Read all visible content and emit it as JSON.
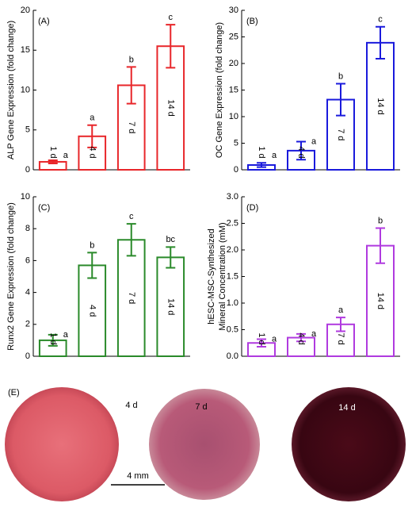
{
  "chart_data": [
    {
      "type": "bar",
      "panel": "(A)",
      "ylabel": "ALP Gene Expression (fold change)",
      "categories": [
        "1 d",
        "4 d",
        "7 d",
        "14 d"
      ],
      "values": [
        1.0,
        4.2,
        10.6,
        15.5
      ],
      "errors": [
        0.2,
        1.4,
        2.3,
        2.7
      ],
      "letters": [
        "a",
        "a",
        "b",
        "c"
      ],
      "color": "#e8262a",
      "ylim": [
        0,
        20
      ],
      "yticks": [
        0,
        5,
        10,
        15,
        20
      ]
    },
    {
      "type": "bar",
      "panel": "(B)",
      "ylabel": "OC Gene Expression (fold change)",
      "categories": [
        "1 d",
        "4 d",
        "7 d",
        "14 d"
      ],
      "values": [
        0.9,
        3.6,
        13.2,
        23.9
      ],
      "errors": [
        0.4,
        1.7,
        3.0,
        3.0
      ],
      "letters": [
        "a",
        "a",
        "b",
        "c"
      ],
      "color": "#1a1adc",
      "ylim": [
        0,
        30
      ],
      "yticks": [
        0,
        5,
        10,
        15,
        20,
        25,
        30
      ]
    },
    {
      "type": "bar",
      "panel": "(C)",
      "ylabel": "Runx2 Gene Expression (fold change)",
      "categories": [
        "1 d",
        "4 d",
        "7 d",
        "14 d"
      ],
      "values": [
        1.0,
        5.7,
        7.3,
        6.2
      ],
      "errors": [
        0.35,
        0.8,
        1.0,
        0.65
      ],
      "letters": [
        "a",
        "b",
        "c",
        "bc"
      ],
      "color": "#2a8a2a",
      "ylim": [
        0,
        10
      ],
      "yticks": [
        0,
        2,
        4,
        6,
        8,
        10
      ]
    },
    {
      "type": "bar",
      "panel": "(D)",
      "ylabel": [
        "hESC-MSC-Synthesized",
        "Mineral Concentration (mM)"
      ],
      "categories": [
        "1 d",
        "4 d",
        "7 d",
        "14 d"
      ],
      "values": [
        0.25,
        0.35,
        0.6,
        2.08
      ],
      "errors": [
        0.07,
        0.07,
        0.13,
        0.33
      ],
      "letters": [
        "a",
        "a",
        "a",
        "b"
      ],
      "color": "#b03adf",
      "ylim": [
        0,
        3
      ],
      "yticks": [
        {
          "value": 0,
          "label": "0.0"
        },
        {
          "value": 0.5,
          "label": "0.5"
        },
        {
          "value": 1,
          "label": "1.0"
        },
        {
          "value": 1.5,
          "label": "1.5"
        },
        {
          "value": 2,
          "label": "2.0"
        },
        {
          "value": 2.5,
          "label": "2.5"
        },
        {
          "value": 3,
          "label": "3.0"
        }
      ]
    }
  ],
  "panel_e": {
    "label": "(E)",
    "images": [
      "4 d",
      "7 d",
      "14 d"
    ],
    "scale_bar": "4 mm"
  }
}
